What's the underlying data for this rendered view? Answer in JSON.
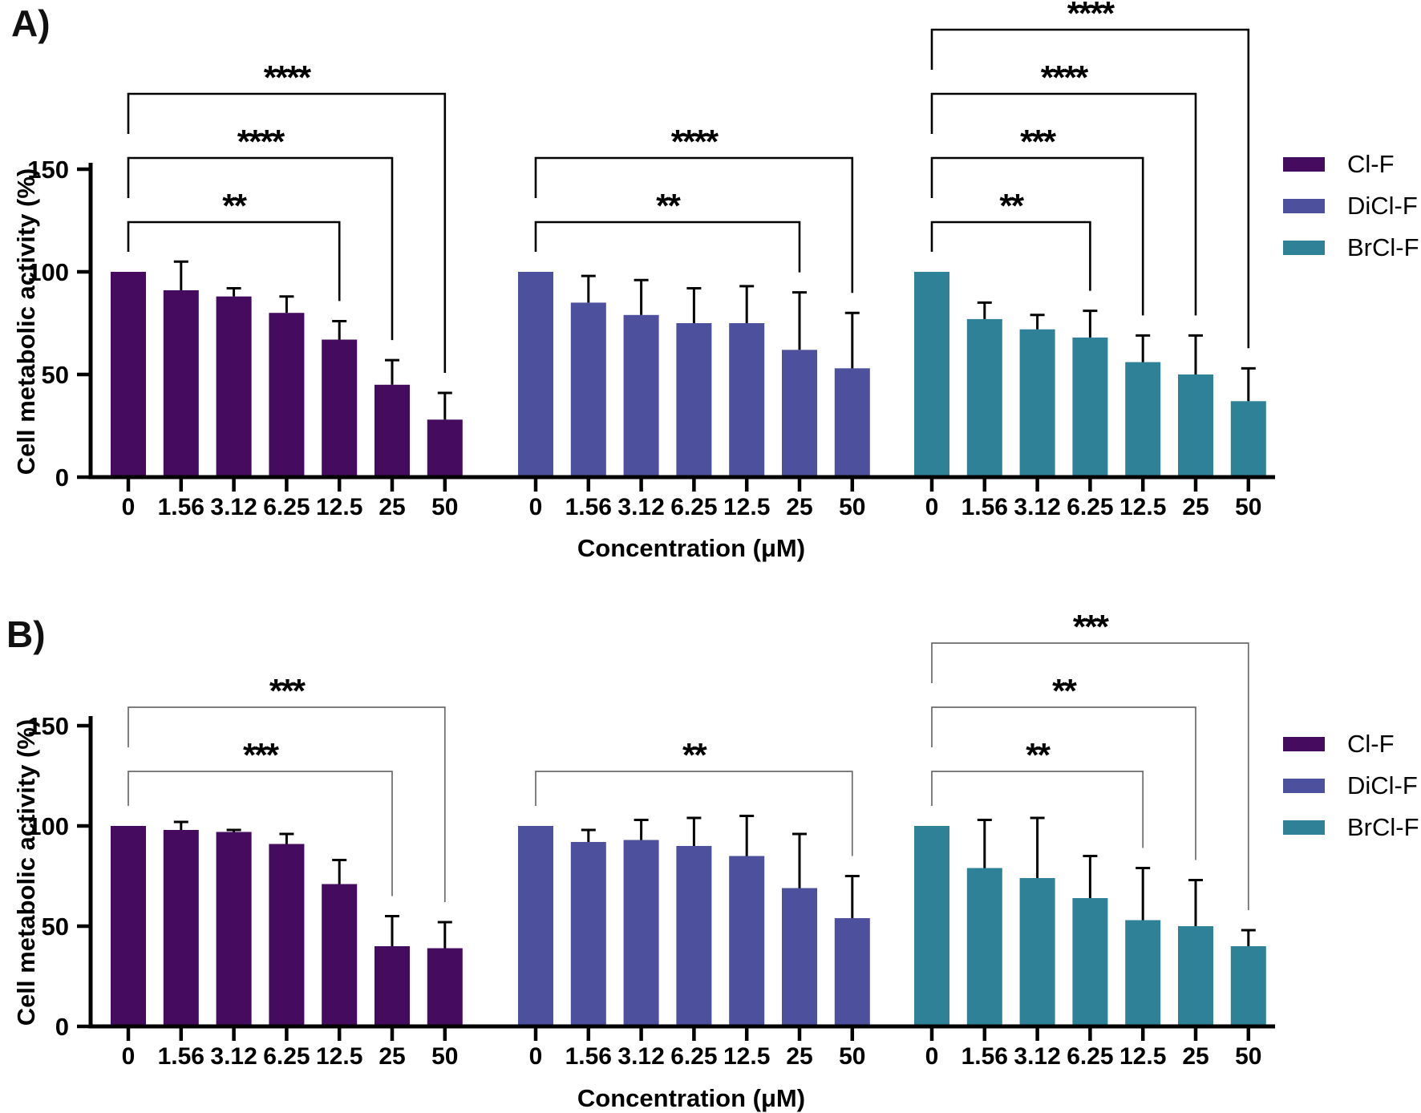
{
  "figure_title": "",
  "chart_data": [
    {
      "type": "bar",
      "panel_label": "A)",
      "xlabel": "Concentration (μM)",
      "ylabel": "Cell metabolic activity (%)",
      "ylim": [
        0,
        150
      ],
      "y_ticks": [
        0,
        50,
        100,
        150
      ],
      "grid": false,
      "legend_position": "right",
      "categories": [
        "0",
        "1.56",
        "3.12",
        "6.25",
        "12.5",
        "25",
        "50"
      ],
      "series": [
        {
          "name": "Cl-F",
          "color": "#440b5e",
          "values": [
            100,
            91,
            88,
            80,
            67,
            45,
            28
          ],
          "errors": [
            0,
            14,
            4,
            8,
            9,
            12,
            13
          ],
          "significance": [
            {
              "to": "12.5",
              "label": "**"
            },
            {
              "to": "25",
              "label": "****"
            },
            {
              "to": "50",
              "label": "****"
            }
          ]
        },
        {
          "name": "DiCl-F",
          "color": "#4d509c",
          "values": [
            100,
            85,
            79,
            75,
            75,
            62,
            53
          ],
          "errors": [
            0,
            13,
            17,
            17,
            18,
            28,
            27
          ],
          "significance": [
            {
              "to": "25",
              "label": "**"
            },
            {
              "to": "50",
              "label": "****"
            }
          ]
        },
        {
          "name": "BrCl-F",
          "color": "#2f8197",
          "values": [
            100,
            77,
            72,
            68,
            56,
            50,
            37
          ],
          "errors": [
            0,
            8,
            7,
            13,
            13,
            19,
            16
          ],
          "significance": [
            {
              "to": "6.25",
              "label": "**"
            },
            {
              "to": "12.5",
              "label": "***"
            },
            {
              "to": "25",
              "label": "****"
            },
            {
              "to": "50",
              "label": "****"
            }
          ]
        }
      ]
    },
    {
      "type": "bar",
      "panel_label": "B)",
      "xlabel": "Concentration (μM)",
      "ylabel": "Cell metabolic activity (%)",
      "ylim": [
        0,
        150
      ],
      "y_ticks": [
        0,
        50,
        100,
        150
      ],
      "grid": false,
      "legend_position": "right",
      "categories": [
        "0",
        "1.56",
        "3.12",
        "6.25",
        "12.5",
        "25",
        "50"
      ],
      "series": [
        {
          "name": "Cl-F",
          "color": "#440b5e",
          "values": [
            100,
            98,
            97,
            91,
            71,
            40,
            39
          ],
          "errors": [
            0,
            4,
            1,
            5,
            12,
            15,
            13
          ],
          "significance": [
            {
              "to": "25",
              "label": "***"
            },
            {
              "to": "50",
              "label": "***"
            }
          ]
        },
        {
          "name": "DiCl-F",
          "color": "#4d509c",
          "values": [
            100,
            92,
            93,
            90,
            85,
            69,
            54
          ],
          "errors": [
            0,
            6,
            10,
            14,
            20,
            27,
            21
          ],
          "significance": [
            {
              "to": "50",
              "label": "**"
            }
          ]
        },
        {
          "name": "BrCl-F",
          "color": "#2f8197",
          "values": [
            100,
            79,
            74,
            64,
            53,
            50,
            40
          ],
          "errors": [
            0,
            24,
            30,
            21,
            26,
            23,
            8
          ],
          "significance": [
            {
              "to": "12.5",
              "label": "**"
            },
            {
              "to": "25",
              "label": "**"
            },
            {
              "to": "50",
              "label": "***"
            }
          ]
        }
      ]
    }
  ]
}
